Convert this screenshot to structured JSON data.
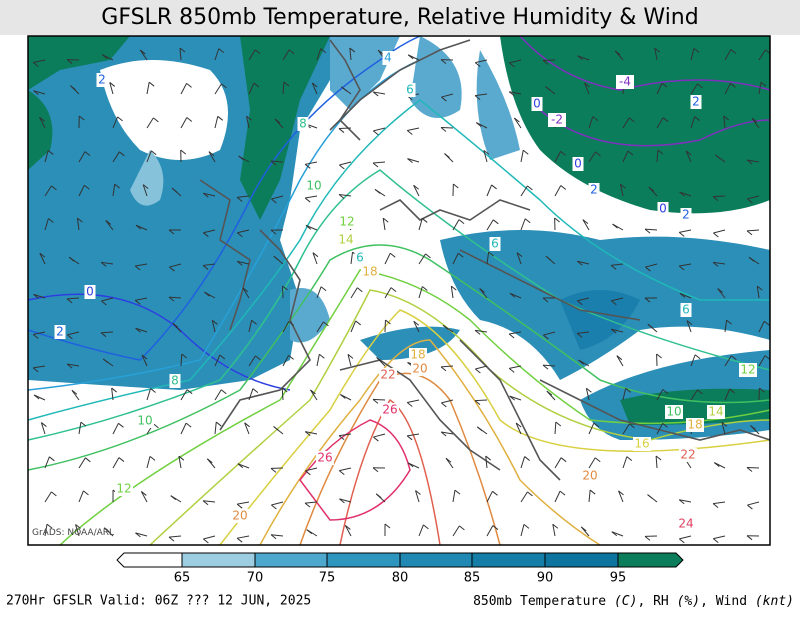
{
  "header": {
    "title": "GFSLR 850mb Temperature, Relative Humidity & Wind"
  },
  "map": {
    "credit": "GrADS: NOAA/ARL",
    "contour_labels": [
      "2",
      "4",
      "6",
      "8",
      "10",
      "12",
      "14",
      "6",
      "18",
      "0",
      "2",
      "6",
      "6",
      "8",
      "10",
      "12",
      "20",
      "22",
      "26",
      "26",
      "18",
      "20",
      "20",
      "12",
      "10",
      "14",
      "16",
      "18",
      "22",
      "24",
      "-2",
      "-4",
      "0",
      "2",
      "0",
      "2",
      "0",
      "2"
    ]
  },
  "legend": {
    "ticks": [
      65,
      70,
      75,
      80,
      85,
      90,
      95
    ]
  },
  "footer": {
    "left": "270Hr GFSLR Valid: 06Z ??? 12 JUN, 2025",
    "right": [
      "850mb Temperature ",
      "(C)",
      ", RH ",
      "(%)",
      ", Wind ",
      "(knt)"
    ]
  }
}
